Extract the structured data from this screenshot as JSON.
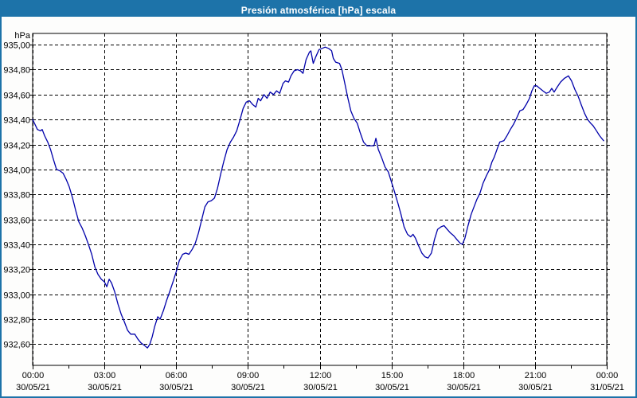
{
  "window": {
    "title": "Presión atmosférica [hPa] escala"
  },
  "colors": {
    "titlebar_bg": "#1d73a9",
    "titlebar_text": "#ffffff",
    "frame_border": "#1d73a9",
    "content_bg": "#fdfdfc",
    "plot_bg": "#ffffff",
    "grid": "#000000",
    "axis": "#000000",
    "label_text": "#000000",
    "line": "#0000aa"
  },
  "chart_data": {
    "type": "line",
    "title": "Presión atmosférica [hPa] escala",
    "ylabel": "hPa",
    "xlabel": "",
    "grid": true,
    "legend": "none",
    "xlim_hours": [
      0,
      24
    ],
    "ylim": [
      932.43,
      935.09
    ],
    "y_ticks": [
      {
        "value": 935.0,
        "label": "935,00"
      },
      {
        "value": 934.8,
        "label": "934,80"
      },
      {
        "value": 934.6,
        "label": "934,60"
      },
      {
        "value": 934.4,
        "label": "934,40"
      },
      {
        "value": 934.2,
        "label": "934,20"
      },
      {
        "value": 934.0,
        "label": "934,00"
      },
      {
        "value": 933.8,
        "label": "933,80"
      },
      {
        "value": 933.6,
        "label": "933,60"
      },
      {
        "value": 933.4,
        "label": "933,40"
      },
      {
        "value": 933.2,
        "label": "933,20"
      },
      {
        "value": 933.0,
        "label": "933,00"
      },
      {
        "value": 932.8,
        "label": "932,80"
      },
      {
        "value": 932.6,
        "label": "932,60"
      }
    ],
    "x_ticks": [
      {
        "hour": 0,
        "time": "00:00",
        "date": "30/05/21"
      },
      {
        "hour": 3,
        "time": "03:00",
        "date": "30/05/21"
      },
      {
        "hour": 6,
        "time": "06:00",
        "date": "30/05/21"
      },
      {
        "hour": 9,
        "time": "09:00",
        "date": "30/05/21"
      },
      {
        "hour": 12,
        "time": "12:00",
        "date": "30/05/21"
      },
      {
        "hour": 15,
        "time": "15:00",
        "date": "30/05/21"
      },
      {
        "hour": 18,
        "time": "18:00",
        "date": "30/05/21"
      },
      {
        "hour": 21,
        "time": "21:00",
        "date": "30/05/21"
      },
      {
        "hour": 24,
        "time": "00:00",
        "date": "31/05/21"
      }
    ],
    "x_minor_step_hours": 1.5,
    "series": [
      {
        "name": "Presión atmosférica",
        "unit": "hPa",
        "points": [
          [
            0.0,
            934.4
          ],
          [
            0.1,
            934.36
          ],
          [
            0.2,
            934.32
          ],
          [
            0.33,
            934.31
          ],
          [
            0.4,
            934.32
          ],
          [
            0.5,
            934.27
          ],
          [
            0.63,
            934.22
          ],
          [
            0.75,
            934.16
          ],
          [
            0.87,
            934.08
          ],
          [
            1.0,
            934.0
          ],
          [
            1.13,
            933.99
          ],
          [
            1.27,
            933.97
          ],
          [
            1.4,
            933.92
          ],
          [
            1.53,
            933.86
          ],
          [
            1.67,
            933.77
          ],
          [
            1.8,
            933.67
          ],
          [
            1.93,
            933.58
          ],
          [
            2.07,
            933.53
          ],
          [
            2.2,
            933.47
          ],
          [
            2.33,
            933.4
          ],
          [
            2.47,
            933.32
          ],
          [
            2.6,
            933.22
          ],
          [
            2.73,
            933.16
          ],
          [
            2.87,
            933.12
          ],
          [
            3.0,
            933.1
          ],
          [
            3.1,
            933.06
          ],
          [
            3.2,
            933.12
          ],
          [
            3.3,
            933.09
          ],
          [
            3.43,
            933.02
          ],
          [
            3.57,
            932.92
          ],
          [
            3.7,
            932.84
          ],
          [
            3.83,
            932.78
          ],
          [
            3.97,
            932.71
          ],
          [
            4.1,
            932.68
          ],
          [
            4.27,
            932.68
          ],
          [
            4.4,
            932.64
          ],
          [
            4.53,
            932.61
          ],
          [
            4.67,
            932.59
          ],
          [
            4.8,
            932.57
          ],
          [
            4.9,
            932.6
          ],
          [
            5.0,
            932.66
          ],
          [
            5.1,
            932.74
          ],
          [
            5.23,
            932.82
          ],
          [
            5.33,
            932.8
          ],
          [
            5.47,
            932.87
          ],
          [
            5.6,
            932.95
          ],
          [
            5.73,
            933.02
          ],
          [
            5.87,
            933.1
          ],
          [
            6.0,
            933.18
          ],
          [
            6.13,
            933.27
          ],
          [
            6.27,
            933.32
          ],
          [
            6.4,
            933.33
          ],
          [
            6.53,
            933.32
          ],
          [
            6.67,
            933.36
          ],
          [
            6.8,
            933.41
          ],
          [
            6.93,
            933.49
          ],
          [
            7.07,
            933.6
          ],
          [
            7.2,
            933.7
          ],
          [
            7.33,
            933.74
          ],
          [
            7.47,
            933.75
          ],
          [
            7.6,
            933.77
          ],
          [
            7.73,
            933.85
          ],
          [
            7.87,
            933.97
          ],
          [
            8.0,
            934.07
          ],
          [
            8.13,
            934.16
          ],
          [
            8.27,
            934.22
          ],
          [
            8.4,
            934.26
          ],
          [
            8.53,
            934.31
          ],
          [
            8.67,
            934.4
          ],
          [
            8.8,
            934.49
          ],
          [
            8.93,
            934.54
          ],
          [
            9.07,
            934.55
          ],
          [
            9.2,
            934.52
          ],
          [
            9.33,
            934.5
          ],
          [
            9.43,
            934.57
          ],
          [
            9.53,
            934.55
          ],
          [
            9.67,
            934.6
          ],
          [
            9.8,
            934.57
          ],
          [
            9.93,
            934.62
          ],
          [
            10.07,
            934.6
          ],
          [
            10.2,
            934.63
          ],
          [
            10.33,
            934.61
          ],
          [
            10.47,
            934.69
          ],
          [
            10.57,
            934.71
          ],
          [
            10.7,
            934.7
          ],
          [
            10.8,
            934.75
          ],
          [
            10.93,
            934.79
          ],
          [
            11.07,
            934.8
          ],
          [
            11.2,
            934.79
          ],
          [
            11.3,
            934.77
          ],
          [
            11.43,
            934.88
          ],
          [
            11.57,
            934.94
          ],
          [
            11.63,
            934.95
          ],
          [
            11.73,
            934.85
          ],
          [
            11.83,
            934.9
          ],
          [
            11.97,
            934.96
          ],
          [
            12.1,
            934.97
          ],
          [
            12.23,
            934.98
          ],
          [
            12.37,
            934.97
          ],
          [
            12.5,
            934.95
          ],
          [
            12.57,
            934.89
          ],
          [
            12.67,
            934.86
          ],
          [
            12.83,
            934.85
          ],
          [
            12.93,
            934.8
          ],
          [
            13.03,
            934.71
          ],
          [
            13.17,
            934.58
          ],
          [
            13.3,
            934.47
          ],
          [
            13.43,
            934.41
          ],
          [
            13.57,
            934.37
          ],
          [
            13.7,
            934.29
          ],
          [
            13.83,
            934.22
          ],
          [
            13.97,
            934.19
          ],
          [
            14.13,
            934.19
          ],
          [
            14.27,
            934.19
          ],
          [
            14.35,
            934.25
          ],
          [
            14.45,
            934.16
          ],
          [
            14.6,
            934.09
          ],
          [
            14.73,
            934.02
          ],
          [
            14.87,
            933.98
          ],
          [
            15.0,
            933.9
          ],
          [
            15.13,
            933.82
          ],
          [
            15.27,
            933.73
          ],
          [
            15.4,
            933.64
          ],
          [
            15.53,
            933.54
          ],
          [
            15.67,
            933.48
          ],
          [
            15.8,
            933.46
          ],
          [
            15.9,
            933.48
          ],
          [
            16.0,
            933.45
          ],
          [
            16.13,
            933.39
          ],
          [
            16.27,
            933.33
          ],
          [
            16.4,
            933.3
          ],
          [
            16.53,
            933.29
          ],
          [
            16.67,
            933.33
          ],
          [
            16.8,
            933.44
          ],
          [
            16.93,
            933.52
          ],
          [
            17.07,
            933.54
          ],
          [
            17.2,
            933.55
          ],
          [
            17.33,
            933.52
          ],
          [
            17.47,
            933.49
          ],
          [
            17.6,
            933.47
          ],
          [
            17.73,
            933.44
          ],
          [
            17.87,
            933.41
          ],
          [
            17.97,
            933.4
          ],
          [
            18.07,
            933.45
          ],
          [
            18.2,
            933.55
          ],
          [
            18.33,
            933.64
          ],
          [
            18.47,
            933.71
          ],
          [
            18.57,
            933.76
          ],
          [
            18.7,
            933.81
          ],
          [
            18.83,
            933.89
          ],
          [
            18.97,
            933.95
          ],
          [
            19.1,
            934.0
          ],
          [
            19.2,
            934.06
          ],
          [
            19.3,
            934.1
          ],
          [
            19.43,
            934.17
          ],
          [
            19.53,
            934.22
          ],
          [
            19.7,
            934.23
          ],
          [
            19.83,
            934.27
          ],
          [
            19.97,
            934.32
          ],
          [
            20.1,
            934.36
          ],
          [
            20.23,
            934.41
          ],
          [
            20.37,
            934.47
          ],
          [
            20.5,
            934.48
          ],
          [
            20.63,
            934.52
          ],
          [
            20.77,
            934.57
          ],
          [
            20.87,
            934.63
          ],
          [
            20.97,
            934.67
          ],
          [
            21.07,
            934.67
          ],
          [
            21.2,
            934.65
          ],
          [
            21.33,
            934.63
          ],
          [
            21.47,
            934.61
          ],
          [
            21.6,
            934.62
          ],
          [
            21.7,
            934.65
          ],
          [
            21.8,
            934.62
          ],
          [
            21.93,
            934.66
          ],
          [
            22.07,
            934.7
          ],
          [
            22.23,
            934.73
          ],
          [
            22.4,
            934.75
          ],
          [
            22.53,
            934.71
          ],
          [
            22.67,
            934.64
          ],
          [
            22.8,
            934.59
          ],
          [
            22.93,
            934.52
          ],
          [
            23.07,
            934.45
          ],
          [
            23.2,
            934.4
          ],
          [
            23.33,
            934.37
          ],
          [
            23.43,
            934.35
          ],
          [
            23.57,
            934.31
          ],
          [
            23.7,
            934.27
          ],
          [
            23.87,
            934.23
          ]
        ]
      }
    ]
  }
}
